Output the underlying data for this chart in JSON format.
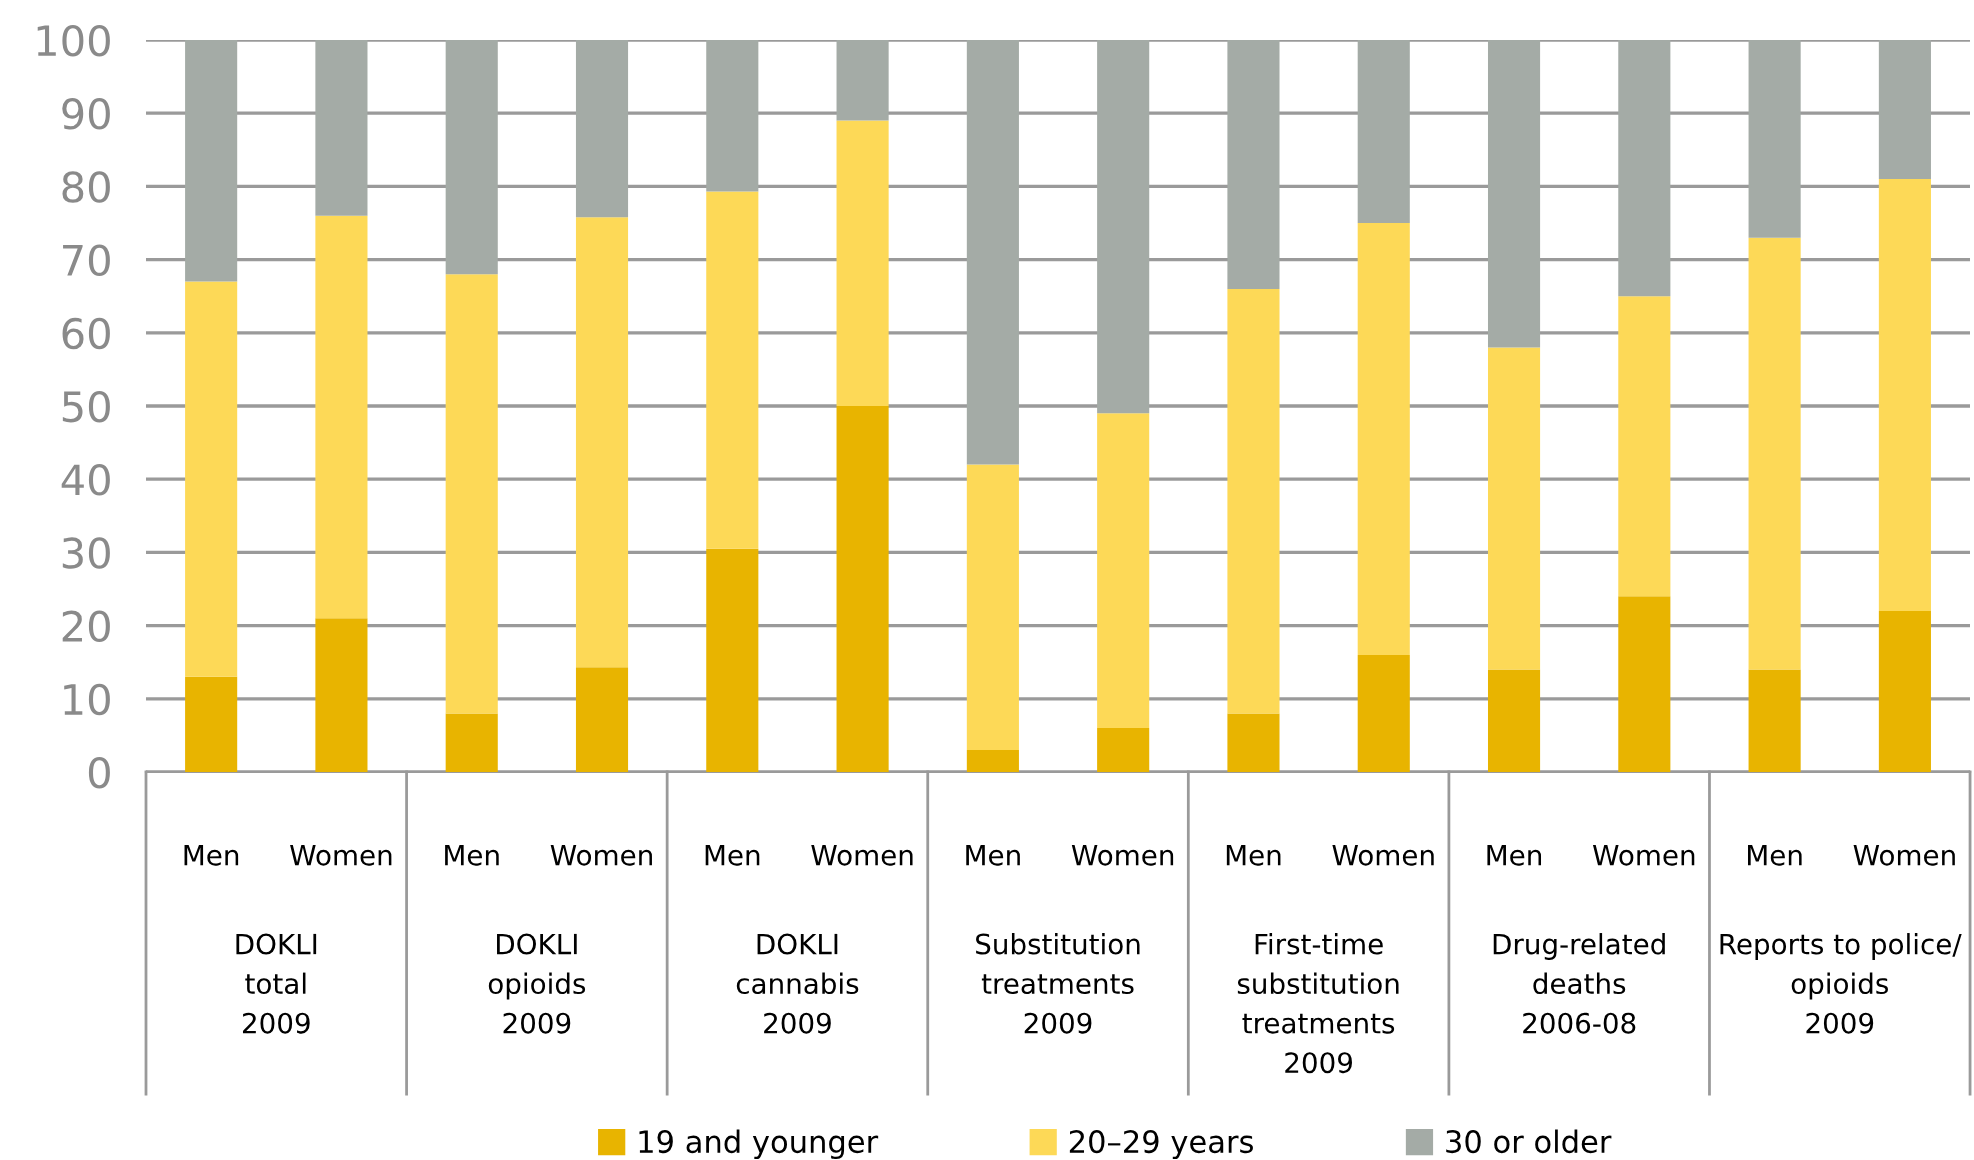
{
  "chart_data": {
    "type": "bar",
    "stacked": true,
    "categories": [
      "Men",
      "Women",
      "Men",
      "Women",
      "Men",
      "Women",
      "Men",
      "Women",
      "Men",
      "Women",
      "Men",
      "Women",
      "Men",
      "Women"
    ],
    "series": [
      {
        "name": "19 and younger",
        "color": "#e8b400",
        "values": [
          13,
          21,
          8,
          14.3,
          30.5,
          50,
          3,
          6,
          8,
          16,
          14,
          24,
          14,
          22
        ]
      },
      {
        "name": "20–29 years",
        "color": "#fdd957",
        "values": [
          54,
          55,
          60,
          61.5,
          48.8,
          39,
          39,
          43,
          58,
          59,
          44,
          41,
          59,
          59
        ]
      },
      {
        "name": "30 or older",
        "color": "#a4aba6",
        "values": [
          33,
          24,
          32,
          24.2,
          20.7,
          11,
          58,
          51,
          34,
          25,
          42,
          35,
          27,
          19
        ]
      }
    ],
    "annotations": [
      "DOKLI\ntotal\n2009",
      "DOKLI\nopioids\n2009",
      "DOKLI\ncannabis\n2009",
      "Substitution\ntreatments\n2009",
      "First-time\nsubstitution\ntreatments\n2009",
      "Drug-related\ndeaths\n2006-08",
      "Reports to police/\nopioids\n2009"
    ],
    "ylim": [
      0,
      100
    ],
    "yticks": [
      0,
      10,
      20,
      30,
      40,
      50,
      60,
      70,
      80,
      90,
      100
    ],
    "grid": "y",
    "legend": "bottom"
  }
}
